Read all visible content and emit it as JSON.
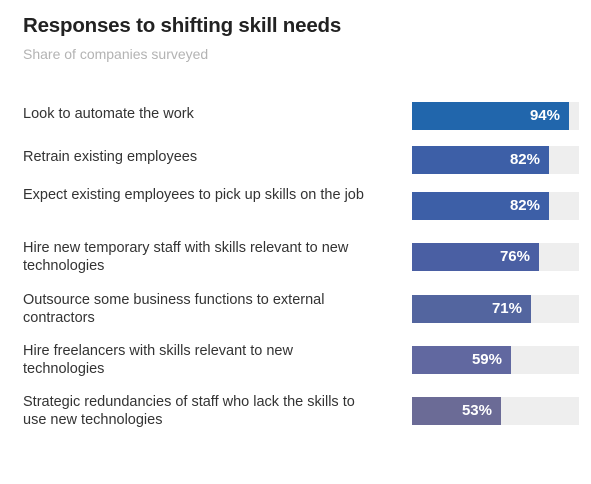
{
  "header": {
    "title": "Responses to shifting skill needs",
    "subtitle": "Share of companies surveyed"
  },
  "chart_data": {
    "type": "bar",
    "orientation": "horizontal",
    "title": "Responses to shifting skill needs",
    "subtitle": "Share of companies surveyed",
    "xlabel": "",
    "ylabel": "",
    "xlim": [
      0,
      100
    ],
    "grid": false,
    "categories": [
      "Look to automate the work",
      "Retrain existing employees",
      "Expect existing employees to pick up skills on the job",
      "Hire new temporary staff with skills relevant to new technologies",
      "Outsource some business functions to external contractors",
      "Hire freelancers with skills relevant to new technologies",
      "Strategic redundancies of staff who lack the skills to use new technologies"
    ],
    "values": [
      94,
      82,
      82,
      76,
      71,
      59,
      53
    ],
    "value_labels": [
      "94%",
      "82%",
      "82%",
      "76%",
      "71%",
      "59%",
      "53%"
    ],
    "colors": [
      "#2166ac",
      "#3d5fa7",
      "#3d5fa7",
      "#4a5fa3",
      "#53659f",
      "#6168a0",
      "#6b6b96"
    ],
    "track_color": "#eeeeee"
  }
}
